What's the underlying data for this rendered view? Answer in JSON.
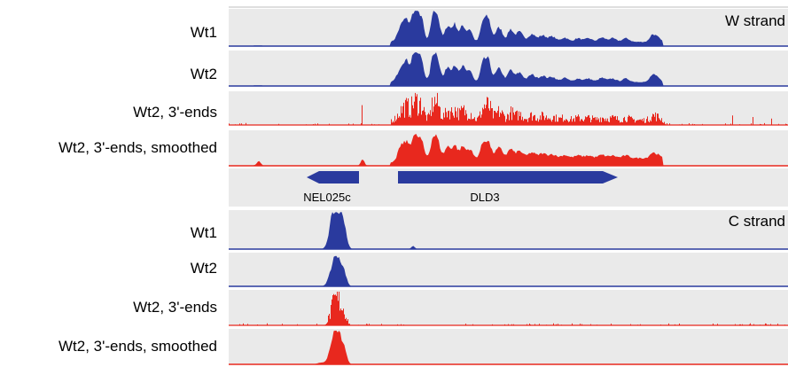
{
  "strands": [
    {
      "id": "w",
      "label": "W strand",
      "tracks": [
        {
          "id": "w-wt1",
          "label": "Wt1",
          "kind": "coverage",
          "color": "#2a3a9e"
        },
        {
          "id": "w-wt2",
          "label": "Wt2",
          "kind": "coverage",
          "color": "#2a3a9e"
        },
        {
          "id": "w-wt2-3ends",
          "label": "Wt2, 3'-ends",
          "kind": "ends",
          "color": "#e8281e"
        },
        {
          "id": "w-wt2-3ends-smoothed",
          "label": "Wt2, 3'-ends, smoothed",
          "kind": "smoothed",
          "color": "#e8281e"
        }
      ]
    },
    {
      "id": "c",
      "label": "C strand",
      "tracks": [
        {
          "id": "c-wt1",
          "label": "Wt1",
          "kind": "coverage",
          "color": "#2a3a9e"
        },
        {
          "id": "c-wt2",
          "label": "Wt2",
          "kind": "coverage",
          "color": "#2a3a9e"
        },
        {
          "id": "c-wt2-3ends",
          "label": "Wt2, 3'-ends",
          "kind": "ends",
          "color": "#e8281e"
        },
        {
          "id": "c-wt2-3ends-smoothed",
          "label": "Wt2, 3'-ends, smoothed",
          "kind": "smoothed",
          "color": "#e8281e"
        }
      ]
    }
  ],
  "genes": [
    {
      "name": "NEL025c",
      "direction": "reverse",
      "color": "#2a3a9e"
    },
    {
      "name": "DLD3",
      "direction": "forward",
      "color": "#2a3a9e"
    }
  ],
  "colors": {
    "track_background": "#eaeaea",
    "separator": "#bdbdbd",
    "coverage": "#2a3a9e",
    "ends": "#e8281e"
  }
}
